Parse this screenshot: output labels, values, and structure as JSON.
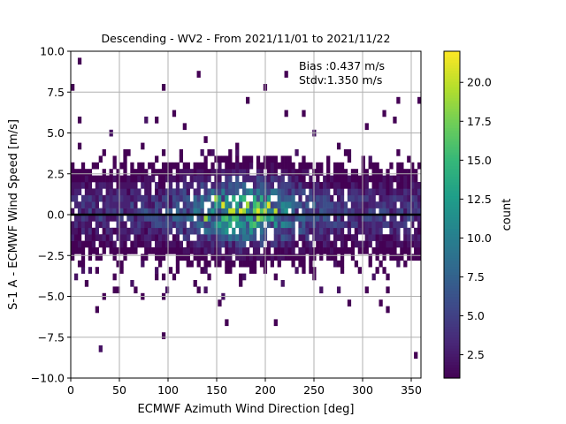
{
  "chart_data": {
    "type": "heatmap",
    "subtype": "2d-histogram",
    "title": "Descending - WV2 - From 2021/11/01 to 2021/11/22",
    "xlabel": "ECMWF Azimuth Wind Direction [deg]",
    "ylabel": "S-1 A - ECMWF Wind Speed [m/s]",
    "xlim": [
      0,
      360
    ],
    "ylim": [
      -10,
      10
    ],
    "xticks": [
      0,
      50,
      100,
      150,
      200,
      250,
      300,
      350
    ],
    "yticks": [
      -10.0,
      -7.5,
      -5.0,
      -2.5,
      0.0,
      2.5,
      5.0,
      7.5,
      10.0
    ],
    "xtick_labels": [
      "0",
      "50",
      "100",
      "150",
      "200",
      "250",
      "300",
      "350"
    ],
    "ytick_labels": [
      "−10.0",
      "−7.5",
      "−5.0",
      "−2.5",
      "0.0",
      "2.5",
      "5.0",
      "7.5",
      "10.0"
    ],
    "grid": true,
    "bin_width_x": 3.6,
    "bin_width_y": 0.4,
    "stats_text": [
      "Bias :0.437 m/s",
      "Stdv:1.350 m/s"
    ],
    "zero_line_y": 0.0,
    "colorbar": {
      "label": "count",
      "colormap": "viridis",
      "range": [
        1,
        22
      ],
      "ticks": [
        2.5,
        5.0,
        7.5,
        10.0,
        12.5,
        15.0,
        17.5,
        20.0
      ],
      "tick_labels": [
        "2.5",
        "5.0",
        "7.5",
        "10.0",
        "12.5",
        "15.0",
        "17.5",
        "20.0"
      ]
    },
    "outlier_points": [
      [
        8,
        9.5
      ],
      [
        96,
        7.8
      ],
      [
        223,
        8.5
      ],
      [
        199,
        7.8
      ],
      [
        28,
        -5.7
      ],
      [
        66,
        -4.5
      ],
      [
        47,
        -4.5
      ],
      [
        152,
        -5.5
      ],
      [
        160,
        -6.4
      ],
      [
        325,
        -5.9
      ],
      [
        354,
        -8.4
      ],
      [
        287,
        -5.5
      ],
      [
        96,
        -4.9
      ],
      [
        16,
        -4.2
      ],
      [
        180,
        7.2
      ],
      [
        106,
        6.1
      ],
      [
        241,
        6.3
      ],
      [
        338,
        7.2
      ],
      [
        322,
        6.1
      ],
      [
        221,
        6.1
      ]
    ],
    "peak_bins": [
      [
        151,
        1.0
      ],
      [
        158,
        0.6
      ],
      [
        169,
        0.2
      ],
      [
        180,
        0.4
      ],
      [
        191,
        0.2
      ],
      [
        198,
        0.2
      ],
      [
        205,
        0.6
      ],
      [
        162,
        0.2
      ],
      [
        194,
        -0.2
      ],
      [
        140,
        -0.2
      ],
      [
        212,
        0.2
      ],
      [
        176,
        0.2
      ]
    ]
  },
  "colors": {
    "grid": "#b0b0b0",
    "zero_line": "#000000",
    "axes": "#000000"
  }
}
